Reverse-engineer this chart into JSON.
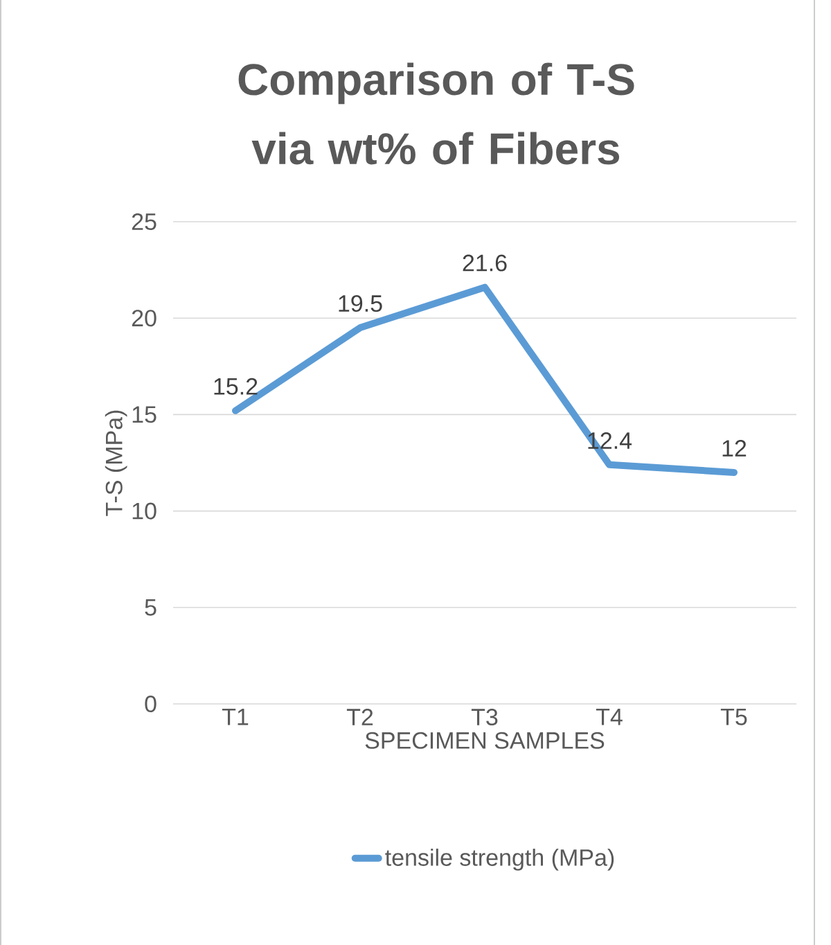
{
  "chart_data": {
    "type": "line",
    "title": "Comparison of T-S via wt% of Fibers",
    "xlabel": "SPECIMEN SAMPLES",
    "ylabel": "T-S (MPa)",
    "categories": [
      "T1",
      "T2",
      "T3",
      "T4",
      "T5"
    ],
    "series": [
      {
        "name": "tensile strength (MPa)",
        "color": "#5b9bd5",
        "values": [
          15.2,
          19.5,
          21.6,
          12.4,
          12
        ]
      }
    ],
    "ylim": [
      0,
      25
    ],
    "yticks": [
      0,
      5,
      10,
      15,
      20,
      25
    ],
    "grid": "y",
    "legend": "bottom",
    "data_labels": true,
    "marker": "none",
    "line_style": "solid"
  }
}
